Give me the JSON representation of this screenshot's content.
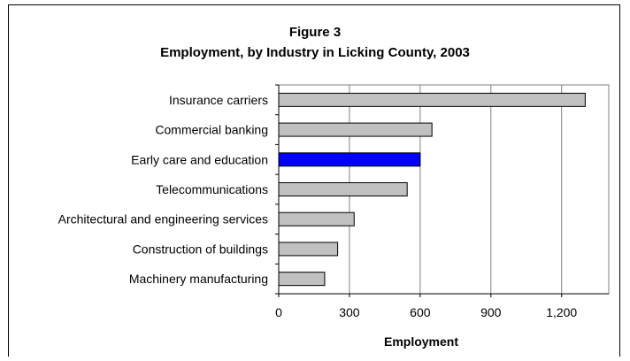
{
  "chart_data": {
    "type": "bar",
    "orientation": "horizontal",
    "title": "Figure 3",
    "subtitle": "Employment, by Industry in Licking County, 2003",
    "xlabel": "Employment",
    "ylabel": "",
    "categories": [
      "Insurance carriers",
      "Commercial banking",
      "Early care and education",
      "Telecommunications",
      "Architectural and engineering services",
      "Construction of buildings",
      "Machinery manufacturing"
    ],
    "values": [
      1300,
      650,
      600,
      545,
      320,
      250,
      195
    ],
    "highlight_category": "Early care and education",
    "xlim": [
      0,
      1400
    ],
    "xticks": [
      0,
      300,
      600,
      900,
      1200
    ],
    "xtick_labels": [
      "0",
      "300",
      "600",
      "900",
      "1,200"
    ],
    "grid": "vertical",
    "legend": "none",
    "colors": {
      "bar": "#c0c0c0",
      "highlight": "#0000ff",
      "bar_edge": "#000000",
      "grid": "#808080",
      "frame": "#000000"
    }
  }
}
